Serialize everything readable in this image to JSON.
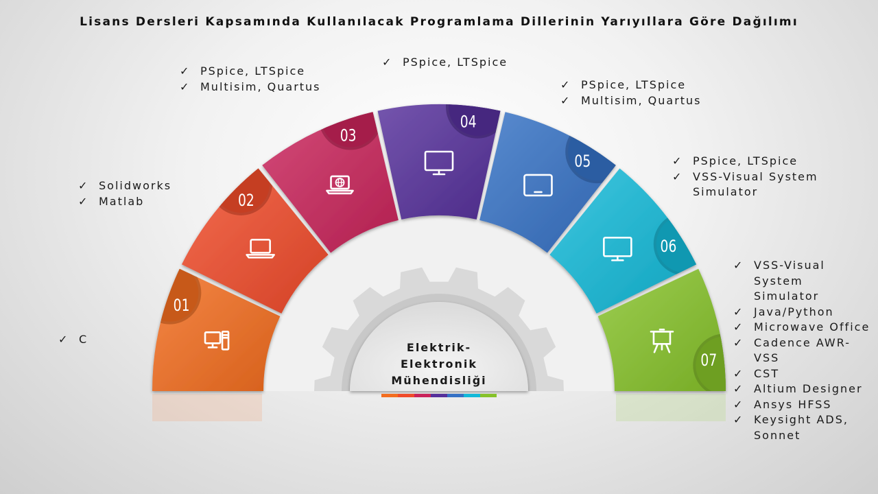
{
  "title": "Lisans Dersleri Kapsamında Kullanılacak Programlama Dillerinin Yarıyıllara Göre Dağılımı",
  "center": {
    "line1": "Elektrik-",
    "line2": "Elektronik",
    "line3": "Mühendisliği"
  },
  "segments": [
    {
      "number": "01",
      "color": "#f36d1f",
      "icon": "desktop-computer-icon",
      "items": [
        "C"
      ]
    },
    {
      "number": "02",
      "color": "#f04b2a",
      "icon": "laptop-icon",
      "items": [
        "Solidworks",
        "Matlab"
      ]
    },
    {
      "number": "03",
      "color": "#c9235a",
      "icon": "laptop-globe-icon",
      "items": [
        "PSpice, LTSpice",
        "Multisim, Quartus"
      ]
    },
    {
      "number": "04",
      "color": "#55309b",
      "icon": "monitor-icon",
      "items": [
        "PSpice, LTSpice"
      ]
    },
    {
      "number": "05",
      "color": "#3571c5",
      "icon": "tablet-icon",
      "items": [
        "PSpice, LTSpice",
        "Multisim, Quartus"
      ]
    },
    {
      "number": "06",
      "color": "#13b9d8",
      "icon": "monitor-icon",
      "items": [
        "PSpice, LTSpice",
        "VSS-Visual System Simulator"
      ]
    },
    {
      "number": "07",
      "color": "#86c22a",
      "icon": "presentation-board-icon",
      "items": [
        "VSS-Visual System Simulator",
        "Java/Python",
        "Microwave Office",
        "Cadence AWR-VSS",
        "CST",
        "Altium Designer",
        "Ansys HFSS",
        " Keysight ADS, Sonnet"
      ]
    }
  ]
}
